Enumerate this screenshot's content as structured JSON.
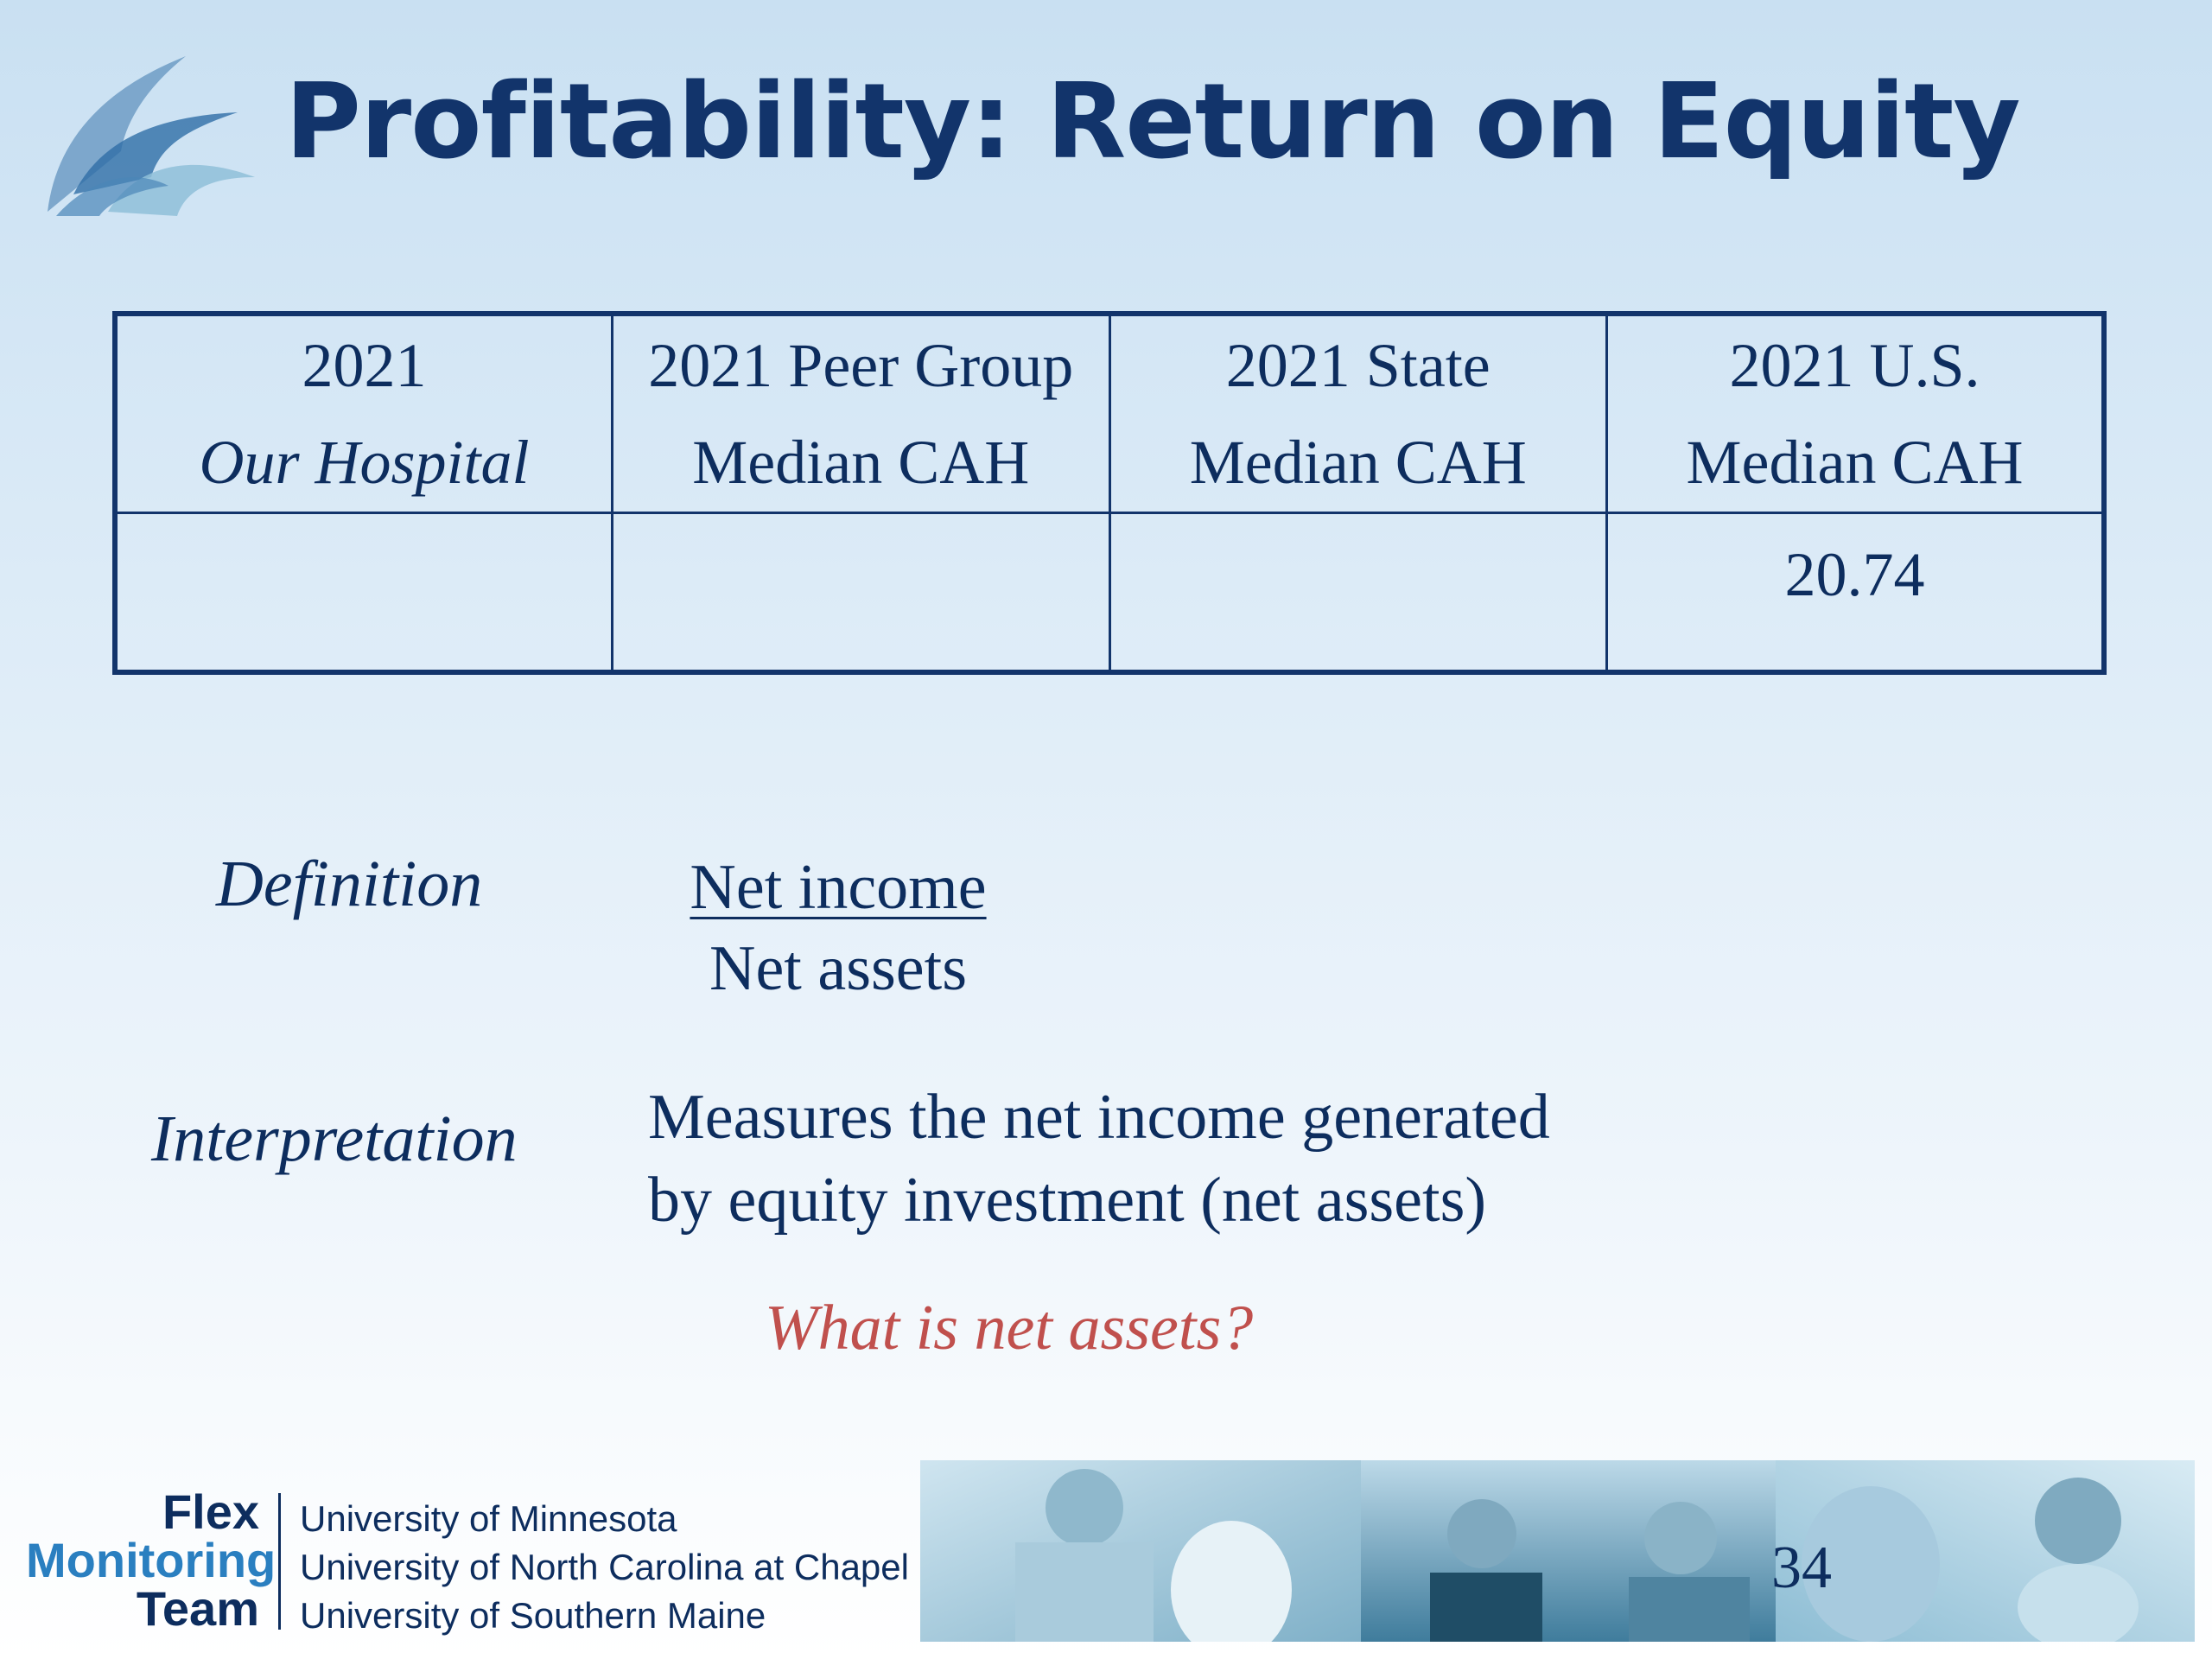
{
  "slide": {
    "title": "Profitability:  Return on Equity"
  },
  "table": {
    "headers": [
      {
        "line1": "2021",
        "line2": "Our Hospital"
      },
      {
        "line1": "2021 Peer Group",
        "line2": "Median CAH"
      },
      {
        "line1": "2021 State",
        "line2": "Median CAH"
      },
      {
        "line1": "2021 U.S.",
        "line2": "Median CAH"
      }
    ],
    "values": [
      "",
      "",
      "",
      "20.74"
    ]
  },
  "definition": {
    "label": "Definition",
    "numerator": "Net income",
    "denominator": "Net assets"
  },
  "interpretation": {
    "label": "Interpretation",
    "line1": "Measures the net income generated",
    "line2": "by equity investment (net assets)"
  },
  "question": "What is net assets?",
  "footer": {
    "logo": {
      "flex": "Flex",
      "monitoring": "Monitoring",
      "team": "Team"
    },
    "universities": [
      "University of Minnesota",
      "University of North Carolina at Chapel Hill",
      "University of Southern Maine"
    ],
    "page_number": "34"
  },
  "colors": {
    "title": "#12346b",
    "text": "#0d2d5e",
    "question": "#c0504d",
    "logo_accent": "#2a7fc0"
  }
}
